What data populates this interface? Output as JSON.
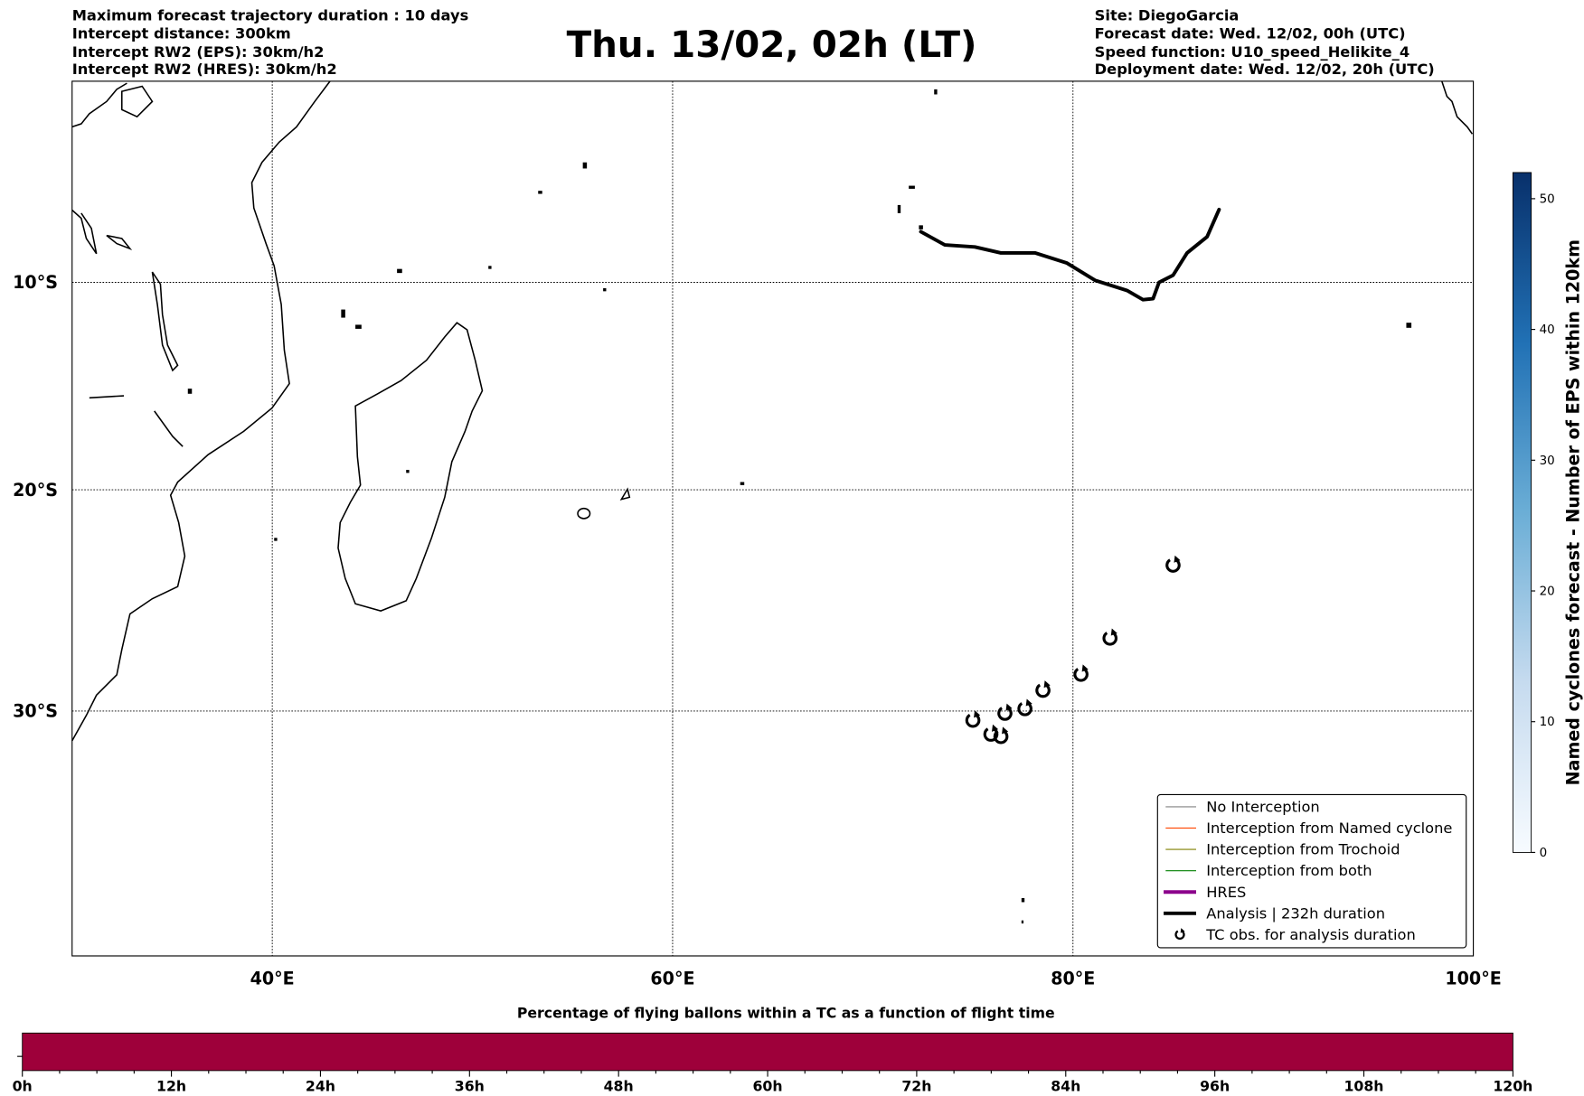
{
  "header": {
    "left": [
      "Maximum forecast trajectory duration : 10 days",
      "Intercept distance: 300km",
      "Intercept RW2 (EPS):  30km/h2",
      "Intercept RW2 (HRES): 30km/h2"
    ],
    "title": "Thu. 13/02, 02h (LT)",
    "right": [
      "Site: DiegoGarcia",
      "Forecast date: Wed. 12/02, 00h (UTC)",
      "Speed function: U10_speed_Helikite_4",
      "Deployment date: Wed. 12/02, 20h (UTC)"
    ]
  },
  "chart_data": [
    {
      "type": "map",
      "projection": "mercator",
      "xlim": [
        30,
        100
      ],
      "ylim": [
        -40,
        0
      ],
      "x_ticks": [
        {
          "value": 40,
          "label": "40°E"
        },
        {
          "value": 60,
          "label": "60°E"
        },
        {
          "value": 80,
          "label": "80°E"
        },
        {
          "value": 100,
          "label": "100°E"
        }
      ],
      "y_ticks": [
        {
          "value": -10,
          "label": "10°S"
        },
        {
          "value": -20,
          "label": "20°S"
        },
        {
          "value": -30,
          "label": "30°S"
        }
      ],
      "grid": true,
      "analysis_track": {
        "name": "Analysis | 232h duration",
        "color": "#000000",
        "points": [
          [
            72.4,
            -7.5
          ],
          [
            73.6,
            -8.15
          ],
          [
            75.1,
            -8.25
          ],
          [
            76.4,
            -8.55
          ],
          [
            78.1,
            -8.55
          ],
          [
            79.7,
            -9.05
          ],
          [
            81.1,
            -9.9
          ],
          [
            82.7,
            -10.4
          ],
          [
            83.5,
            -10.85
          ],
          [
            84.0,
            -10.8
          ],
          [
            84.3,
            -10.0
          ],
          [
            85.0,
            -9.65
          ],
          [
            85.7,
            -8.55
          ],
          [
            86.7,
            -7.75
          ],
          [
            87.3,
            -6.4
          ]
        ]
      },
      "tc_obs": [
        [
          85.0,
          -23.5
        ],
        [
          81.85,
          -26.8
        ],
        [
          80.4,
          -28.4
        ],
        [
          78.5,
          -29.1
        ],
        [
          77.6,
          -29.9
        ],
        [
          76.6,
          -30.1
        ],
        [
          75.0,
          -30.4
        ],
        [
          75.9,
          -31.0
        ],
        [
          76.4,
          -31.1
        ]
      ],
      "legend": {
        "placement": "lower-right",
        "entries": [
          {
            "label": "No Interception",
            "color": "#808080"
          },
          {
            "label": "Interception from Named cyclone",
            "color": "#ff4500"
          },
          {
            "label": "Interception from Trochoid",
            "color": "#808000"
          },
          {
            "label": "Interception from both",
            "color": "#008000"
          },
          {
            "label": "HRES",
            "color": "#8b008b"
          },
          {
            "label": "Analysis | 232h duration",
            "color": "#000000"
          },
          {
            "label": "TC obs. for analysis duration",
            "color": "#000000"
          }
        ]
      }
    },
    {
      "type": "colorbar",
      "label": "Named cyclones forecast - Number of EPS within 120km",
      "range": [
        0,
        52
      ],
      "ticks": [
        "0",
        "10",
        "20",
        "30",
        "40",
        "50"
      ],
      "colors": [
        "#f7fbff",
        "#08306b"
      ]
    },
    {
      "type": "bar",
      "title": "Percentage of flying ballons within a TC as a function of flight time",
      "x_ticks": [
        "0h",
        "12h",
        "24h",
        "36h",
        "48h",
        "60h",
        "72h",
        "84h",
        "96h",
        "108h",
        "120h"
      ],
      "xlim": [
        0,
        120
      ],
      "fill_color": "#9e003a"
    }
  ]
}
